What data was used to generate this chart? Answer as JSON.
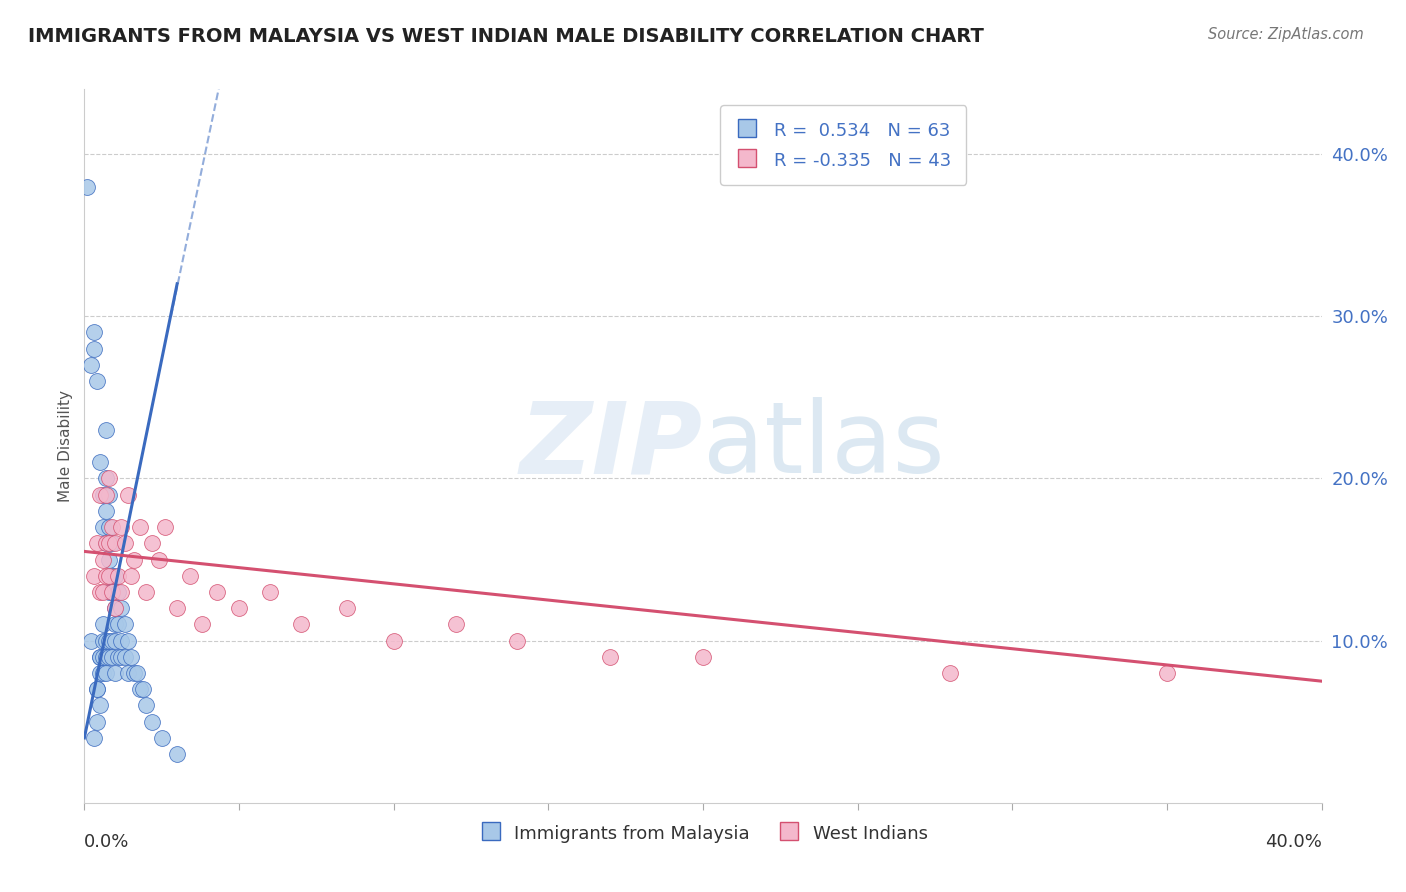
{
  "title": "IMMIGRANTS FROM MALAYSIA VS WEST INDIAN MALE DISABILITY CORRELATION CHART",
  "source": "Source: ZipAtlas.com",
  "ylabel": "Male Disability",
  "ylabel_right_ticks": [
    "10.0%",
    "20.0%",
    "30.0%",
    "40.0%"
  ],
  "ylabel_right_vals": [
    0.1,
    0.2,
    0.3,
    0.4
  ],
  "xlim": [
    0.0,
    0.4
  ],
  "ylim": [
    0.0,
    0.44
  ],
  "legend_r1": "R =  0.534   N = 63",
  "legend_r2": "R = -0.335   N = 43",
  "color_malaysia": "#a8c8e8",
  "color_westindian": "#f4b8cc",
  "trendline_malaysia": "#3a6abf",
  "trendline_westindian": "#d45070",
  "background": "#ffffff",
  "malaysia_x": [
    0.001,
    0.002,
    0.002,
    0.003,
    0.003,
    0.003,
    0.004,
    0.004,
    0.004,
    0.004,
    0.005,
    0.005,
    0.005,
    0.005,
    0.005,
    0.006,
    0.006,
    0.006,
    0.006,
    0.006,
    0.006,
    0.007,
    0.007,
    0.007,
    0.007,
    0.007,
    0.007,
    0.007,
    0.008,
    0.008,
    0.008,
    0.008,
    0.008,
    0.008,
    0.009,
    0.009,
    0.009,
    0.009,
    0.009,
    0.01,
    0.01,
    0.01,
    0.01,
    0.01,
    0.011,
    0.011,
    0.011,
    0.012,
    0.012,
    0.012,
    0.013,
    0.013,
    0.014,
    0.014,
    0.015,
    0.016,
    0.017,
    0.018,
    0.019,
    0.02,
    0.022,
    0.025,
    0.03
  ],
  "malaysia_y": [
    0.38,
    0.27,
    0.1,
    0.29,
    0.28,
    0.04,
    0.26,
    0.07,
    0.07,
    0.05,
    0.21,
    0.09,
    0.09,
    0.08,
    0.06,
    0.19,
    0.17,
    0.11,
    0.1,
    0.09,
    0.08,
    0.23,
    0.2,
    0.18,
    0.16,
    0.1,
    0.09,
    0.08,
    0.19,
    0.17,
    0.15,
    0.13,
    0.1,
    0.09,
    0.16,
    0.14,
    0.13,
    0.1,
    0.09,
    0.14,
    0.12,
    0.11,
    0.1,
    0.08,
    0.13,
    0.11,
    0.09,
    0.12,
    0.1,
    0.09,
    0.11,
    0.09,
    0.1,
    0.08,
    0.09,
    0.08,
    0.08,
    0.07,
    0.07,
    0.06,
    0.05,
    0.04,
    0.03
  ],
  "westindian_x": [
    0.003,
    0.004,
    0.005,
    0.005,
    0.006,
    0.006,
    0.007,
    0.007,
    0.007,
    0.008,
    0.008,
    0.008,
    0.009,
    0.009,
    0.01,
    0.01,
    0.011,
    0.012,
    0.012,
    0.013,
    0.014,
    0.015,
    0.016,
    0.018,
    0.02,
    0.022,
    0.024,
    0.026,
    0.03,
    0.034,
    0.038,
    0.043,
    0.05,
    0.06,
    0.07,
    0.085,
    0.1,
    0.12,
    0.14,
    0.17,
    0.2,
    0.28,
    0.35
  ],
  "westindian_y": [
    0.14,
    0.16,
    0.19,
    0.13,
    0.15,
    0.13,
    0.19,
    0.16,
    0.14,
    0.2,
    0.16,
    0.14,
    0.17,
    0.13,
    0.16,
    0.12,
    0.14,
    0.17,
    0.13,
    0.16,
    0.19,
    0.14,
    0.15,
    0.17,
    0.13,
    0.16,
    0.15,
    0.17,
    0.12,
    0.14,
    0.11,
    0.13,
    0.12,
    0.13,
    0.11,
    0.12,
    0.1,
    0.11,
    0.1,
    0.09,
    0.09,
    0.08,
    0.08
  ],
  "trendline_malaysia_x0": 0.0,
  "trendline_malaysia_y0": 0.04,
  "trendline_malaysia_x1": 0.03,
  "trendline_malaysia_y1": 0.32,
  "trendline_malaysia_xdash0": 0.028,
  "trendline_malaysia_xdash1": 0.05,
  "trendline_malaysia_ydash0": 0.3,
  "trendline_malaysia_ydash1": 0.5,
  "trendline_wi_x0": 0.0,
  "trendline_wi_y0": 0.155,
  "trendline_wi_x1": 0.4,
  "trendline_wi_y1": 0.075
}
